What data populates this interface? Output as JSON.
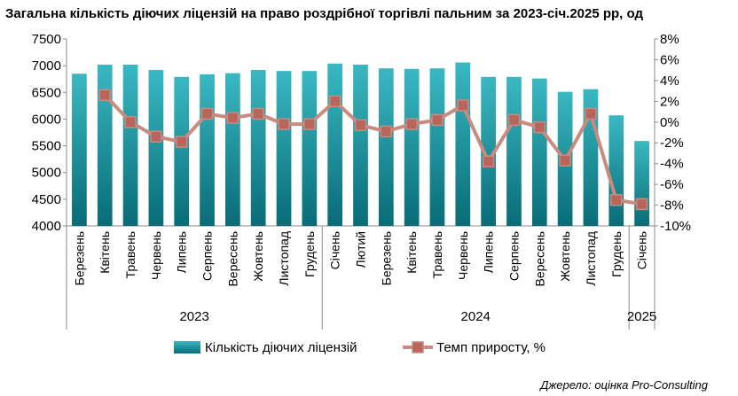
{
  "chart_data": {
    "type": "bar",
    "title": "Загальна кількість діючих ліцензій на право роздрібної торгівлі пальним за 2023-січ.2025 рр, од",
    "categories": [
      "Березень",
      "Квітень",
      "Травень",
      "Червень",
      "Липень",
      "Серпень",
      "Вересень",
      "Жовтень",
      "Листопад",
      "Грудень",
      "Січень",
      "Лютий",
      "Березень",
      "Квітень",
      "Травень",
      "Червень",
      "Липень",
      "Серпень",
      "Вересень",
      "Жовтень",
      "Листопад",
      "Грудень",
      "Січень"
    ],
    "year_groups": [
      {
        "label": "2023",
        "start": 0,
        "count": 10
      },
      {
        "label": "2024",
        "start": 10,
        "count": 12
      },
      {
        "label": "2025",
        "start": 22,
        "count": 1
      }
    ],
    "series": [
      {
        "name": "Кількість діючих ліцензій",
        "type": "bar",
        "axis": "left",
        "values": [
          6850,
          7020,
          7020,
          6920,
          6790,
          6840,
          6860,
          6920,
          6900,
          6900,
          7040,
          7020,
          6950,
          6940,
          6950,
          7060,
          6790,
          6790,
          6760,
          6510,
          6560,
          6070,
          5590
        ]
      },
      {
        "name": "Темп приросту, %",
        "type": "line",
        "axis": "right",
        "values": [
          null,
          2.6,
          0.0,
          -1.4,
          -1.9,
          0.8,
          0.4,
          0.8,
          -0.2,
          -0.2,
          2.0,
          -0.3,
          -0.9,
          -0.2,
          0.2,
          1.6,
          -3.8,
          0.2,
          -0.5,
          -3.7,
          0.8,
          -7.5,
          -7.9
        ]
      }
    ],
    "y_left": {
      "min": 4000,
      "max": 7500,
      "step": 500
    },
    "y_right": {
      "min": -10,
      "max": 8,
      "step": 2,
      "suffix": "%"
    },
    "grid": false,
    "legend_position": "bottom",
    "colors": {
      "bar_top": "#3ab8c2",
      "bar_bottom": "#086c76",
      "line": "#c98a80",
      "marker": "#b8665c"
    }
  },
  "source": "Джерело: оцінка Pro-Consulting"
}
